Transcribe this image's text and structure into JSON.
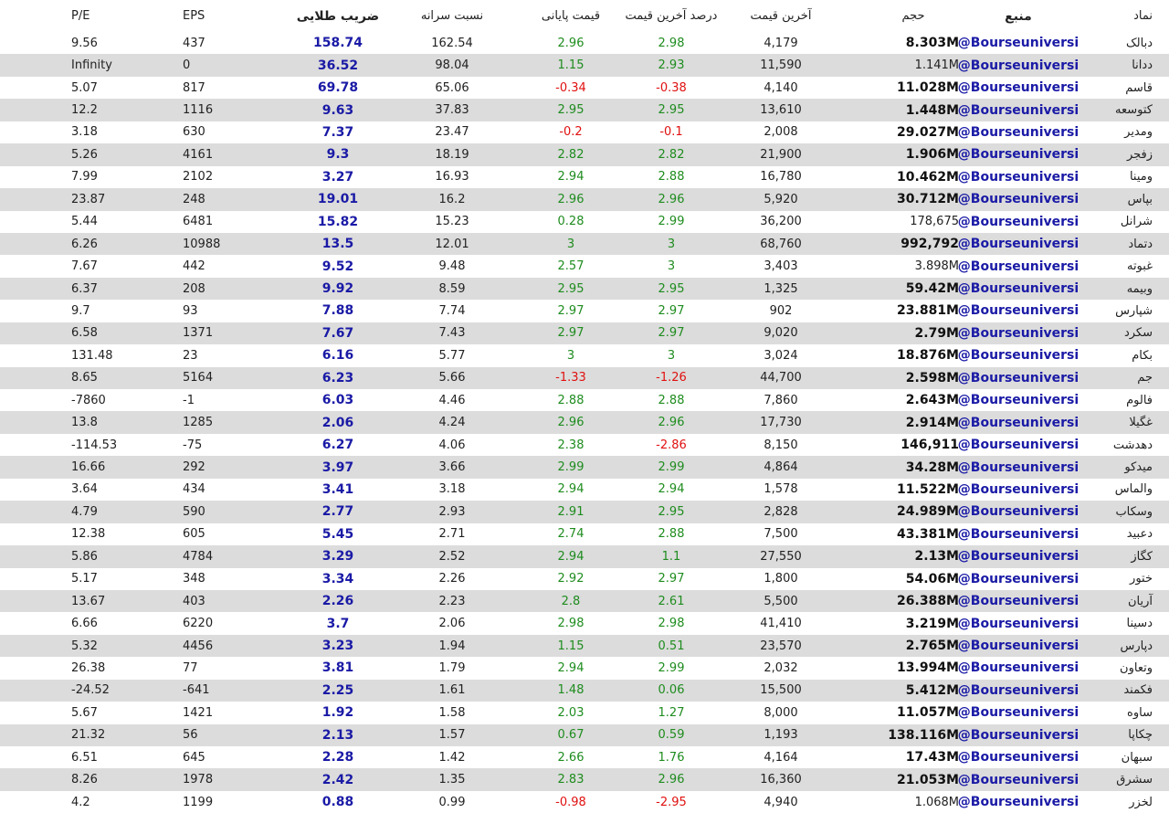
{
  "headers": {
    "symbol": "نماد",
    "source": "منبع",
    "volume": "حجم",
    "last_price": "آخرین قیمت",
    "last_pct": "درصد آخرین قیمت",
    "close_price": "قیمت پایانی",
    "capita_ratio": "نسبت سرانه",
    "golden_coef": "ضریب طلایی",
    "eps": "EPS",
    "pe": "P/E"
  },
  "colors": {
    "positive": "#1e8c1e",
    "negative": "#e01010",
    "source_link": "#1a1aa6",
    "alt_row": "#dcdcdc"
  },
  "rows": [
    {
      "symbol": "دبالک",
      "source": "@Bourseuniversi",
      "volume": "8.303M",
      "vol_bold": true,
      "last": "4,179",
      "last_pct": "2.98",
      "close": "2.96",
      "ratio": "162.54",
      "golden": "158.74",
      "eps": "437",
      "pe": "9.56"
    },
    {
      "symbol": "ددانا",
      "source": "@Bourseuniversi",
      "volume": "1.141M",
      "vol_bold": false,
      "last": "11,590",
      "last_pct": "2.93",
      "close": "1.15",
      "ratio": "98.04",
      "golden": "36.52",
      "eps": "0",
      "pe": "Infinity"
    },
    {
      "symbol": "قاسم",
      "source": "@Bourseuniversi",
      "volume": "11.028M",
      "vol_bold": true,
      "last": "4,140",
      "last_pct": "-0.38",
      "close": "-0.34",
      "ratio": "65.06",
      "golden": "69.78",
      "eps": "817",
      "pe": "5.07"
    },
    {
      "symbol": "کتوسعه",
      "source": "@Bourseuniversi",
      "volume": "1.448M",
      "vol_bold": true,
      "last": "13,610",
      "last_pct": "2.95",
      "close": "2.95",
      "ratio": "37.83",
      "golden": "9.63",
      "eps": "1116",
      "pe": "12.2"
    },
    {
      "symbol": "ومدیر",
      "source": "@Bourseuniversi",
      "volume": "29.027M",
      "vol_bold": true,
      "last": "2,008",
      "last_pct": "-0.1",
      "close": "-0.2",
      "ratio": "23.47",
      "golden": "7.37",
      "eps": "630",
      "pe": "3.18"
    },
    {
      "symbol": "زفجر",
      "source": "@Bourseuniversi",
      "volume": "1.906M",
      "vol_bold": true,
      "last": "21,900",
      "last_pct": "2.82",
      "close": "2.82",
      "ratio": "18.19",
      "golden": "9.3",
      "eps": "4161",
      "pe": "5.26"
    },
    {
      "symbol": "ومینا",
      "source": "@Bourseuniversi",
      "volume": "10.462M",
      "vol_bold": true,
      "last": "16,780",
      "last_pct": "2.88",
      "close": "2.94",
      "ratio": "16.93",
      "golden": "3.27",
      "eps": "2102",
      "pe": "7.99"
    },
    {
      "symbol": "بپاس",
      "source": "@Bourseuniversi",
      "volume": "30.712M",
      "vol_bold": true,
      "last": "5,920",
      "last_pct": "2.96",
      "close": "2.96",
      "ratio": "16.2",
      "golden": "19.01",
      "eps": "248",
      "pe": "23.87"
    },
    {
      "symbol": "شرانل",
      "source": "@Bourseuniversi",
      "volume": "178,675",
      "vol_bold": false,
      "last": "36,200",
      "last_pct": "2.99",
      "close": "0.28",
      "ratio": "15.23",
      "golden": "15.82",
      "eps": "6481",
      "pe": "5.44"
    },
    {
      "symbol": "دتماد",
      "source": "@Bourseuniversi",
      "volume": "992,792",
      "vol_bold": true,
      "last": "68,760",
      "last_pct": "3",
      "close": "3",
      "ratio": "12.01",
      "golden": "13.5",
      "eps": "10988",
      "pe": "6.26"
    },
    {
      "symbol": "غبوته",
      "source": "@Bourseuniversi",
      "volume": "3.898M",
      "vol_bold": false,
      "last": "3,403",
      "last_pct": "3",
      "close": "2.57",
      "ratio": "9.48",
      "golden": "9.52",
      "eps": "442",
      "pe": "7.67"
    },
    {
      "symbol": "وبیمه",
      "source": "@Bourseuniversi",
      "volume": "59.42M",
      "vol_bold": true,
      "last": "1,325",
      "last_pct": "2.95",
      "close": "2.95",
      "ratio": "8.59",
      "golden": "9.92",
      "eps": "208",
      "pe": "6.37"
    },
    {
      "symbol": "شپارس",
      "source": "@Bourseuniversi",
      "volume": "23.881M",
      "vol_bold": true,
      "last": "902",
      "last_pct": "2.97",
      "close": "2.97",
      "ratio": "7.74",
      "golden": "7.88",
      "eps": "93",
      "pe": "9.7"
    },
    {
      "symbol": "سکرد",
      "source": "@Bourseuniversi",
      "volume": "2.79M",
      "vol_bold": true,
      "last": "9,020",
      "last_pct": "2.97",
      "close": "2.97",
      "ratio": "7.43",
      "golden": "7.67",
      "eps": "1371",
      "pe": "6.58"
    },
    {
      "symbol": "بکام",
      "source": "@Bourseuniversi",
      "volume": "18.876M",
      "vol_bold": true,
      "last": "3,024",
      "last_pct": "3",
      "close": "3",
      "ratio": "5.77",
      "golden": "6.16",
      "eps": "23",
      "pe": "131.48"
    },
    {
      "symbol": "جم",
      "source": "@Bourseuniversi",
      "volume": "2.598M",
      "vol_bold": true,
      "last": "44,700",
      "last_pct": "-1.26",
      "close": "-1.33",
      "ratio": "5.66",
      "golden": "6.23",
      "eps": "5164",
      "pe": "8.65"
    },
    {
      "symbol": "فالوم",
      "source": "@Bourseuniversi",
      "volume": "2.643M",
      "vol_bold": true,
      "last": "7,860",
      "last_pct": "2.88",
      "close": "2.88",
      "ratio": "4.46",
      "golden": "6.03",
      "eps": "-1",
      "pe": "-7860"
    },
    {
      "symbol": "غگیلا",
      "source": "@Bourseuniversi",
      "volume": "2.914M",
      "vol_bold": true,
      "last": "17,730",
      "last_pct": "2.96",
      "close": "2.96",
      "ratio": "4.24",
      "golden": "2.06",
      "eps": "1285",
      "pe": "13.8"
    },
    {
      "symbol": "دهدشت",
      "source": "@Bourseuniversi",
      "volume": "146,911",
      "vol_bold": true,
      "last": "8,150",
      "last_pct": "-2.86",
      "close": "2.38",
      "ratio": "4.06",
      "golden": "6.27",
      "eps": "-75",
      "pe": "-114.53"
    },
    {
      "symbol": "میدکو",
      "source": "@Bourseuniversi",
      "volume": "34.28M",
      "vol_bold": true,
      "last": "4,864",
      "last_pct": "2.99",
      "close": "2.99",
      "ratio": "3.66",
      "golden": "3.97",
      "eps": "292",
      "pe": "16.66"
    },
    {
      "symbol": "والماس",
      "source": "@Bourseuniversi",
      "volume": "11.522M",
      "vol_bold": true,
      "last": "1,578",
      "last_pct": "2.94",
      "close": "2.94",
      "ratio": "3.18",
      "golden": "3.41",
      "eps": "434",
      "pe": "3.64"
    },
    {
      "symbol": "وسکاب",
      "source": "@Bourseuniversi",
      "volume": "24.989M",
      "vol_bold": true,
      "last": "2,828",
      "last_pct": "2.95",
      "close": "2.91",
      "ratio": "2.93",
      "golden": "2.77",
      "eps": "590",
      "pe": "4.79"
    },
    {
      "symbol": "دعبید",
      "source": "@Bourseuniversi",
      "volume": "43.381M",
      "vol_bold": true,
      "last": "7,500",
      "last_pct": "2.88",
      "close": "2.74",
      "ratio": "2.71",
      "golden": "5.45",
      "eps": "605",
      "pe": "12.38"
    },
    {
      "symbol": "کگاز",
      "source": "@Bourseuniversi",
      "volume": "2.13M",
      "vol_bold": true,
      "last": "27,550",
      "last_pct": "1.1",
      "close": "2.94",
      "ratio": "2.52",
      "golden": "3.29",
      "eps": "4784",
      "pe": "5.86"
    },
    {
      "symbol": "ختور",
      "source": "@Bourseuniversi",
      "volume": "54.06M",
      "vol_bold": true,
      "last": "1,800",
      "last_pct": "2.97",
      "close": "2.92",
      "ratio": "2.26",
      "golden": "3.34",
      "eps": "348",
      "pe": "5.17"
    },
    {
      "symbol": "آریان",
      "source": "@Bourseuniversi",
      "volume": "26.388M",
      "vol_bold": true,
      "last": "5,500",
      "last_pct": "2.61",
      "close": "2.8",
      "ratio": "2.23",
      "golden": "2.26",
      "eps": "403",
      "pe": "13.67"
    },
    {
      "symbol": "دسینا",
      "source": "@Bourseuniversi",
      "volume": "3.219M",
      "vol_bold": true,
      "last": "41,410",
      "last_pct": "2.98",
      "close": "2.98",
      "ratio": "2.06",
      "golden": "3.7",
      "eps": "6220",
      "pe": "6.66"
    },
    {
      "symbol": "دپارس",
      "source": "@Bourseuniversi",
      "volume": "2.765M",
      "vol_bold": true,
      "last": "23,570",
      "last_pct": "0.51",
      "close": "1.15",
      "ratio": "1.94",
      "golden": "3.23",
      "eps": "4456",
      "pe": "5.32"
    },
    {
      "symbol": "وتعاون",
      "source": "@Bourseuniversi",
      "volume": "13.994M",
      "vol_bold": true,
      "last": "2,032",
      "last_pct": "2.99",
      "close": "2.94",
      "ratio": "1.79",
      "golden": "3.81",
      "eps": "77",
      "pe": "26.38"
    },
    {
      "symbol": "فکمند",
      "source": "@Bourseuniversi",
      "volume": "5.412M",
      "vol_bold": true,
      "last": "15,500",
      "last_pct": "0.06",
      "close": "1.48",
      "ratio": "1.61",
      "golden": "2.25",
      "eps": "-641",
      "pe": "-24.52"
    },
    {
      "symbol": "ساوه",
      "source": "@Bourseuniversi",
      "volume": "11.057M",
      "vol_bold": true,
      "last": "8,000",
      "last_pct": "1.27",
      "close": "2.03",
      "ratio": "1.58",
      "golden": "1.92",
      "eps": "1421",
      "pe": "5.67"
    },
    {
      "symbol": "چکاپا",
      "source": "@Bourseuniversi",
      "volume": "138.116M",
      "vol_bold": true,
      "last": "1,193",
      "last_pct": "0.59",
      "close": "0.67",
      "ratio": "1.57",
      "golden": "2.13",
      "eps": "56",
      "pe": "21.32"
    },
    {
      "symbol": "سبهان",
      "source": "@Bourseuniversi",
      "volume": "17.43M",
      "vol_bold": true,
      "last": "4,164",
      "last_pct": "1.76",
      "close": "2.66",
      "ratio": "1.42",
      "golden": "2.28",
      "eps": "645",
      "pe": "6.51"
    },
    {
      "symbol": "سشرق",
      "source": "@Bourseuniversi",
      "volume": "21.053M",
      "vol_bold": true,
      "last": "16,360",
      "last_pct": "2.96",
      "close": "2.83",
      "ratio": "1.35",
      "golden": "2.42",
      "eps": "1978",
      "pe": "8.26"
    },
    {
      "symbol": "لخزر",
      "source": "@Bourseuniversi",
      "volume": "1.068M",
      "vol_bold": false,
      "last": "4,940",
      "last_pct": "-2.95",
      "close": "-0.98",
      "ratio": "0.99",
      "golden": "0.88",
      "eps": "1199",
      "pe": "4.2"
    }
  ]
}
